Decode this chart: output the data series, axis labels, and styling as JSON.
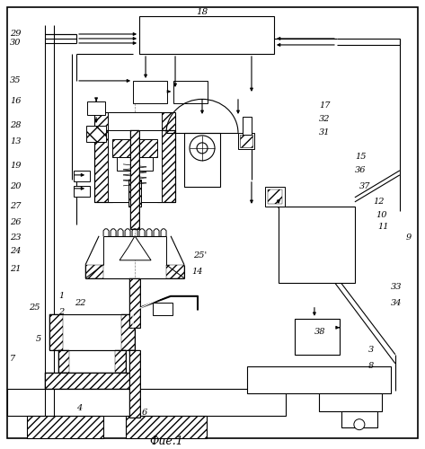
{
  "caption": "Фие.1",
  "bg": "#ffffff",
  "lw": 0.8,
  "fw": 4.73,
  "fh": 5.0,
  "dpi": 100
}
